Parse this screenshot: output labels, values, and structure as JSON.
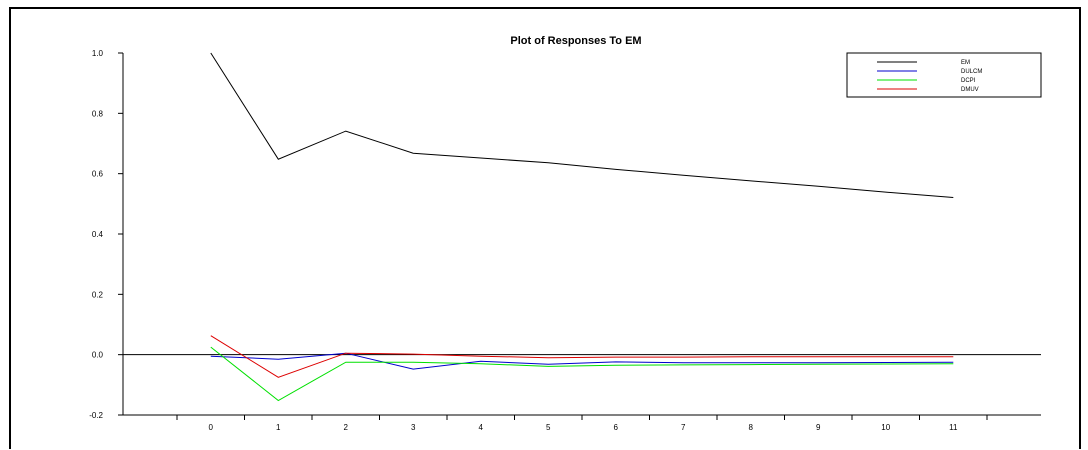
{
  "chart_data": {
    "type": "line",
    "title": "Plot of Responses To EM",
    "xlabel": "",
    "ylabel": "",
    "x": [
      0,
      1,
      2,
      3,
      4,
      5,
      6,
      7,
      8,
      9,
      10,
      11
    ],
    "x_tick_labels": [
      "0",
      "1",
      "2",
      "3",
      "4",
      "5",
      "6",
      "7",
      "8",
      "9",
      "10",
      "11"
    ],
    "xlim": [
      -1.3,
      12.3
    ],
    "ylim": [
      -0.2,
      1.0
    ],
    "y_ticks": [
      -0.2,
      0.0,
      0.2,
      0.4,
      0.6,
      0.8,
      1.0
    ],
    "y_tick_labels": [
      "-0.2",
      "0.0",
      "0.2",
      "0.4",
      "0.6",
      "0.8",
      "1.0"
    ],
    "zero_line": true,
    "grid": false,
    "legend_position": "top-right",
    "series": [
      {
        "name": "EM",
        "color": "#000000",
        "values": [
          1.0,
          0.648,
          0.741,
          0.668,
          0.652,
          0.636,
          0.614,
          0.595,
          0.576,
          0.558,
          0.539,
          0.521
        ]
      },
      {
        "name": "DULCM",
        "color": "#0000cc",
        "values": [
          -0.005,
          -0.015,
          0.005,
          -0.048,
          -0.022,
          -0.032,
          -0.024,
          -0.027,
          -0.027,
          -0.027,
          -0.026,
          -0.025
        ]
      },
      {
        "name": "DCPI",
        "color": "#00e000",
        "values": [
          0.025,
          -0.152,
          -0.025,
          -0.025,
          -0.03,
          -0.039,
          -0.035,
          -0.034,
          -0.033,
          -0.032,
          -0.031,
          -0.03
        ]
      },
      {
        "name": "DMUV",
        "color": "#dd0000",
        "values": [
          0.063,
          -0.075,
          0.005,
          0.002,
          -0.005,
          -0.01,
          -0.008,
          -0.008,
          -0.007,
          -0.007,
          -0.007,
          -0.007
        ]
      }
    ]
  }
}
